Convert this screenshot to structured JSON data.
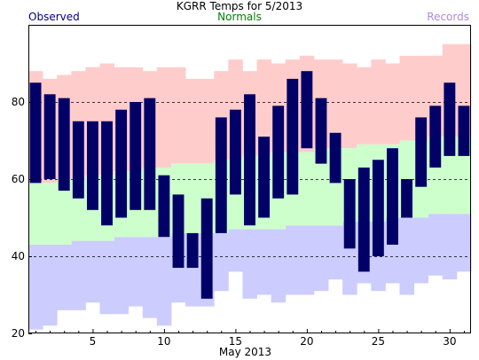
{
  "header": {
    "title": "KGRR Temps for 5/2013",
    "observed_label": "Observed",
    "normals_label": "Normals",
    "records_label": "Records"
  },
  "colors": {
    "observed": "#000066",
    "observed_legend": "#000080",
    "normals": "#008000",
    "normals_band": "#ccffcc",
    "records_legend": "#b088dd",
    "record_high_band": "#ffcccc",
    "record_low_band": "#ccccff"
  },
  "chart_data": {
    "type": "bar",
    "title": "KGRR Temps for 5/2013",
    "xlabel": "May 2013",
    "ylabel": "",
    "ylim": [
      20,
      100
    ],
    "yticks": [
      20,
      40,
      60,
      80
    ],
    "xticks": [
      5,
      10,
      15,
      20,
      25,
      30
    ],
    "grid": "dashed horizontal at 40, 60, 80",
    "days": [
      1,
      2,
      3,
      4,
      5,
      6,
      7,
      8,
      9,
      10,
      11,
      12,
      13,
      14,
      15,
      16,
      17,
      18,
      19,
      20,
      21,
      22,
      23,
      24,
      25,
      26,
      27,
      28,
      29,
      30,
      31
    ],
    "series": [
      {
        "name": "Observed",
        "kind": "range",
        "high": [
          85,
          82,
          81,
          75,
          75,
          75,
          78,
          80,
          81,
          61,
          56,
          46,
          55,
          76,
          78,
          82,
          71,
          79,
          86,
          88,
          81,
          72,
          60,
          63,
          65,
          68,
          60,
          76,
          79,
          85,
          79
        ],
        "low": [
          59,
          60,
          57,
          55,
          52,
          48,
          50,
          52,
          52,
          45,
          37,
          37,
          29,
          46,
          56,
          48,
          50,
          55,
          56,
          68,
          64,
          59,
          42,
          36,
          40,
          43,
          50,
          58,
          63,
          66,
          66
        ]
      },
      {
        "name": "Normals",
        "kind": "band",
        "high": [
          59,
          59,
          60,
          60,
          61,
          61,
          62,
          62,
          63,
          63,
          64,
          64,
          64,
          65,
          65,
          66,
          66,
          67,
          67,
          67,
          68,
          68,
          68,
          69,
          69,
          69,
          70,
          70,
          71,
          71,
          71
        ],
        "low": [
          43,
          43,
          43,
          44,
          44,
          44,
          45,
          45,
          45,
          45,
          46,
          46,
          46,
          46,
          47,
          47,
          47,
          47,
          48,
          48,
          48,
          48,
          49,
          49,
          49,
          50,
          50,
          50,
          51,
          51,
          51
        ]
      },
      {
        "name": "Records",
        "kind": "band",
        "high": [
          88,
          86,
          87,
          88,
          89,
          90,
          89,
          89,
          88,
          89,
          89,
          86,
          86,
          88,
          91,
          88,
          91,
          90,
          91,
          92,
          91,
          91,
          90,
          89,
          91,
          90,
          92,
          92,
          92,
          95,
          95
        ],
        "low": [
          21,
          22,
          26,
          26,
          28,
          25,
          25,
          27,
          24,
          22,
          28,
          27,
          27,
          31,
          36,
          29,
          30,
          28,
          30,
          30,
          31,
          34,
          30,
          33,
          31,
          33,
          30,
          33,
          35,
          34,
          36
        ]
      }
    ]
  }
}
